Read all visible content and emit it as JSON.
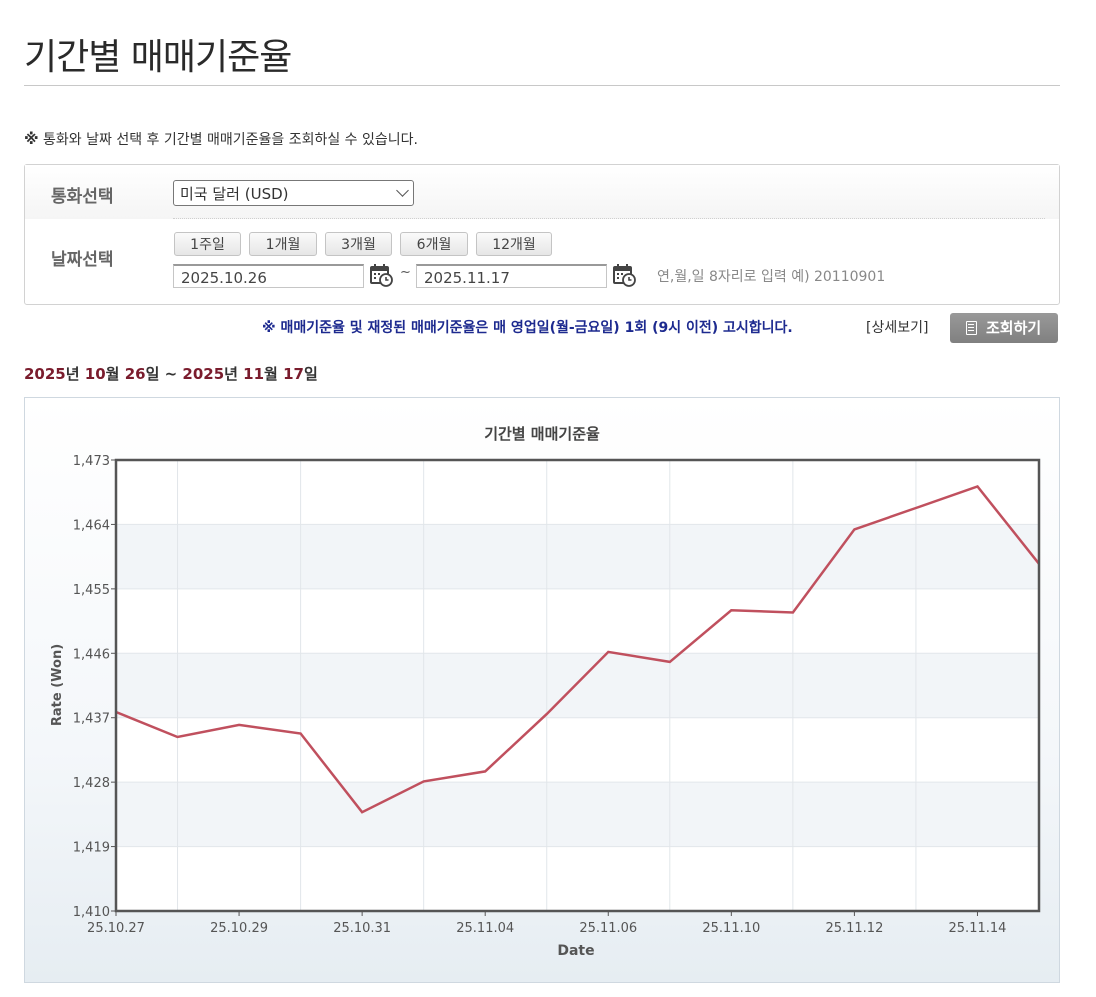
{
  "page": {
    "title": "기간별 매매기준율",
    "notice_mark": "※",
    "notice": "통화와 날짜 선택 후 기간별 매매기준율을 조회하실 수 있습니다."
  },
  "filter": {
    "currency_label": "통화선택",
    "currency_value": "미국 달러 (USD)",
    "date_label": "날짜선택",
    "period_buttons": [
      "1주일",
      "1개월",
      "3개월",
      "6개월",
      "12개월"
    ],
    "start_date": "2025.10.26",
    "end_date": "2025.11.17",
    "tilde": "~",
    "date_hint": "연,월,일 8자리로 입력 예) 20110901"
  },
  "info": {
    "blue_notice": "※ 매매기준율 및 재정된 매매기준율은 매 영업일(월-금요일) 1회 (9시 이전) 고시합니다.",
    "detail_link": "[상세보기]",
    "search_button": "조회하기"
  },
  "range": {
    "y1": "2025",
    "u_year1": "년 ",
    "m1": "10",
    "u_month1": "월 ",
    "d1": "26",
    "u_day1": "일",
    "sep": " ~ ",
    "y2": "2025",
    "u_year2": "년 ",
    "m2": "11",
    "u_month2": "월 ",
    "d2": "17",
    "u_day2": "일"
  },
  "colors": {
    "line": "#c0505e",
    "maroon": "#7a1c2d",
    "notice_blue": "#1d2a8f"
  },
  "chart_data": {
    "type": "line",
    "title": "기간별 매매기준율",
    "xlabel": "Date",
    "ylabel": "Rate (Won)",
    "ylim": [
      1410,
      1473
    ],
    "yticks": [
      "1,410",
      "1,419",
      "1,428",
      "1,437",
      "1,446",
      "1,455",
      "1,464",
      "1,473"
    ],
    "ytick_values": [
      1410,
      1419,
      1428,
      1437,
      1446,
      1455,
      1464,
      1473
    ],
    "xtick_labels": [
      "25.10.27",
      "25.10.29",
      "25.10.31",
      "25.11.04",
      "25.11.06",
      "25.11.10",
      "25.11.12",
      "25.11.14"
    ],
    "xtick_index": [
      0,
      2,
      4,
      6,
      8,
      10,
      12,
      14
    ],
    "grid": true,
    "series": [
      {
        "values": [
          1437.8,
          1434.3,
          1436.0,
          1434.8,
          1423.8,
          1428.1,
          1429.5,
          1437.5,
          1446.2,
          1444.8,
          1452.0,
          1451.7,
          1463.3,
          1466.3,
          1469.3,
          1458.5
        ]
      }
    ]
  }
}
